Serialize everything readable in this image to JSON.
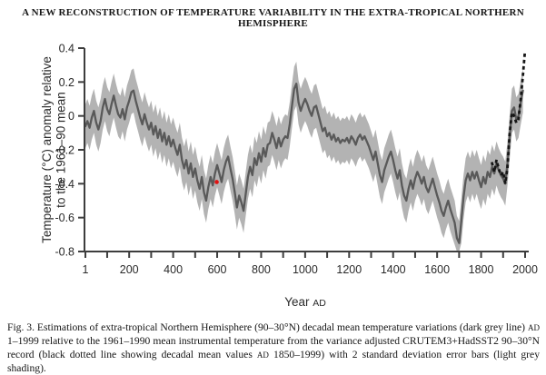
{
  "page": {
    "header": "A NEW RECONSTRUCTION OF TEMPERATURE VARIABILITY IN THE EXTRA-TROPICAL NORTHERN HEMISPHERE",
    "caption_segments": [
      {
        "text": "Fig. 3. Estimations of extra-tropical Northern Hemisphere (90–30°N) decadal mean temperature variations (dark grey line) ",
        "smallcaps": false
      },
      {
        "text": "AD",
        "smallcaps": true
      },
      {
        "text": " 1–1999 relative to the 1961–1990 mean instrumental temperature from the variance adjusted CRUTEM3+HadSST2 90–30°N record (black dotted line showing decadal mean values ",
        "smallcaps": false
      },
      {
        "text": "AD",
        "smallcaps": true
      },
      {
        "text": " 1850–1999) with 2 standard deviation error bars (light grey shading).",
        "smallcaps": false
      }
    ]
  },
  "chart_data": {
    "type": "line",
    "title": "",
    "xlabel": "Year AD",
    "xlabel_parts": [
      {
        "text": "Year ",
        "smallcaps": false
      },
      {
        "text": "AD",
        "smallcaps": true
      }
    ],
    "ylabel": "Temperature (°C) anomaly relative to the 1961–90 mean",
    "ylabel_lines": [
      "Temperature (°C) anomaly relative",
      "to the 1961–90 mean"
    ],
    "xlim": [
      1,
      2010
    ],
    "ylim": [
      -0.8,
      0.4
    ],
    "xticks_labeled": [
      1,
      200,
      400,
      600,
      800,
      1000,
      1200,
      1400,
      1600,
      1800,
      2000
    ],
    "xticks_minor": [
      100,
      300,
      500,
      700,
      900,
      1100,
      1300,
      1500,
      1700,
      1900
    ],
    "ytick_values": [
      0.4,
      0.2,
      0,
      -0.2,
      -0.4,
      -0.6,
      -0.8
    ],
    "ytick_labels": [
      "0.4",
      "0.2",
      "0",
      "-0.2",
      "-0.4",
      "-0.6",
      "-0.8"
    ],
    "grid": false,
    "legend": "none",
    "colors": {
      "reconstruction": "#595959",
      "uncertainty_band": "#b3b3b3",
      "instrumental": "#161616",
      "axis": "#3d3d3d",
      "marker": "#e01212"
    },
    "band_halfwidth": 0.13,
    "series": [
      {
        "name": "reconstruction",
        "label": "Extra-tropical NH decadal mean temperature, AD 1-1999 (dark grey line)",
        "style": "solid",
        "x": [
          1,
          10,
          20,
          30,
          40,
          50,
          60,
          70,
          80,
          90,
          100,
          110,
          120,
          130,
          140,
          150,
          160,
          170,
          180,
          190,
          200,
          210,
          220,
          230,
          240,
          250,
          260,
          270,
          280,
          290,
          300,
          310,
          320,
          330,
          340,
          350,
          360,
          370,
          380,
          390,
          400,
          410,
          420,
          430,
          440,
          450,
          460,
          470,
          480,
          490,
          500,
          510,
          520,
          530,
          540,
          550,
          560,
          570,
          580,
          590,
          600,
          610,
          620,
          630,
          640,
          650,
          660,
          670,
          680,
          690,
          700,
          710,
          720,
          730,
          740,
          750,
          760,
          770,
          780,
          790,
          800,
          810,
          820,
          830,
          840,
          850,
          860,
          870,
          880,
          890,
          900,
          910,
          920,
          930,
          940,
          950,
          960,
          970,
          980,
          990,
          1000,
          1010,
          1020,
          1030,
          1040,
          1050,
          1060,
          1070,
          1080,
          1090,
          1100,
          1110,
          1120,
          1130,
          1140,
          1150,
          1160,
          1170,
          1180,
          1190,
          1200,
          1210,
          1220,
          1230,
          1240,
          1250,
          1260,
          1270,
          1280,
          1290,
          1300,
          1310,
          1320,
          1330,
          1340,
          1350,
          1360,
          1370,
          1380,
          1390,
          1400,
          1410,
          1420,
          1430,
          1440,
          1450,
          1460,
          1470,
          1480,
          1490,
          1500,
          1510,
          1520,
          1530,
          1540,
          1550,
          1560,
          1570,
          1580,
          1590,
          1600,
          1610,
          1620,
          1630,
          1640,
          1650,
          1660,
          1670,
          1680,
          1690,
          1700,
          1710,
          1720,
          1730,
          1740,
          1750,
          1760,
          1770,
          1780,
          1790,
          1800,
          1810,
          1820,
          1830,
          1840,
          1850,
          1860,
          1870,
          1880,
          1890,
          1900,
          1910,
          1920,
          1930,
          1940,
          1950,
          1960,
          1970,
          1980,
          1990
        ],
        "y": [
          -0.06,
          -0.03,
          -0.07,
          -0.01,
          0.03,
          -0.04,
          -0.08,
          -0.03,
          0.05,
          0.1,
          0.04,
          0.01,
          0.07,
          0.12,
          0.06,
          0.01,
          -0.01,
          0.04,
          -0.02,
          0.05,
          0.09,
          0.14,
          0.15,
          0.09,
          0.04,
          -0.01,
          -0.05,
          0.01,
          -0.04,
          -0.08,
          -0.04,
          -0.11,
          -0.06,
          -0.13,
          -0.08,
          -0.15,
          -0.1,
          -0.17,
          -0.12,
          -0.18,
          -0.14,
          -0.19,
          -0.23,
          -0.17,
          -0.26,
          -0.31,
          -0.26,
          -0.34,
          -0.28,
          -0.36,
          -0.31,
          -0.38,
          -0.43,
          -0.36,
          -0.45,
          -0.5,
          -0.42,
          -0.36,
          -0.41,
          -0.34,
          -0.29,
          -0.34,
          -0.39,
          -0.32,
          -0.27,
          -0.24,
          -0.31,
          -0.37,
          -0.45,
          -0.54,
          -0.47,
          -0.51,
          -0.56,
          -0.46,
          -0.36,
          -0.3,
          -0.35,
          -0.25,
          -0.29,
          -0.22,
          -0.27,
          -0.19,
          -0.24,
          -0.17,
          -0.16,
          -0.1,
          -0.14,
          -0.19,
          -0.13,
          -0.18,
          -0.14,
          -0.12,
          -0.13,
          -0.05,
          0.06,
          0.16,
          0.19,
          0.08,
          0.03,
          0.07,
          0.1,
          0.07,
          0.03,
          0.0,
          0.05,
          0.06,
          0.01,
          -0.04,
          -0.09,
          -0.07,
          -0.12,
          -0.1,
          -0.14,
          -0.11,
          -0.15,
          -0.13,
          -0.16,
          -0.14,
          -0.15,
          -0.13,
          -0.16,
          -0.12,
          -0.14,
          -0.17,
          -0.13,
          -0.11,
          -0.14,
          -0.12,
          -0.15,
          -0.18,
          -0.22,
          -0.26,
          -0.21,
          -0.28,
          -0.35,
          -0.39,
          -0.32,
          -0.28,
          -0.24,
          -0.21,
          -0.26,
          -0.32,
          -0.37,
          -0.32,
          -0.41,
          -0.47,
          -0.5,
          -0.43,
          -0.38,
          -0.43,
          -0.37,
          -0.33,
          -0.36,
          -0.4,
          -0.36,
          -0.42,
          -0.45,
          -0.41,
          -0.37,
          -0.42,
          -0.47,
          -0.51,
          -0.56,
          -0.59,
          -0.54,
          -0.5,
          -0.55,
          -0.59,
          -0.63,
          -0.72,
          -0.75,
          -0.62,
          -0.48,
          -0.38,
          -0.34,
          -0.38,
          -0.33,
          -0.37,
          -0.33,
          -0.38,
          -0.42,
          -0.36,
          -0.4,
          -0.33,
          -0.36,
          -0.3,
          -0.34,
          -0.28,
          -0.32,
          -0.35,
          -0.37,
          -0.4,
          -0.28,
          -0.12,
          0.03,
          0.05,
          -0.02,
          0.0,
          0.08,
          0.15
        ]
      },
      {
        "name": "instrumental",
        "label": "CRUTEM3+HadSST2 90-30N decadal mean values AD 1850-1999 (black dotted line)",
        "style": "dotted",
        "x": [
          1850,
          1860,
          1870,
          1880,
          1890,
          1900,
          1910,
          1920,
          1930,
          1940,
          1950,
          1960,
          1970,
          1980,
          1990,
          1999
        ],
        "y": [
          -0.28,
          -0.33,
          -0.26,
          -0.31,
          -0.35,
          -0.33,
          -0.4,
          -0.3,
          -0.1,
          0.02,
          0.0,
          -0.04,
          -0.02,
          0.1,
          0.24,
          0.38
        ]
      }
    ],
    "marker": {
      "x": 598,
      "y": -0.39,
      "note": "small red dot on plot near AD 600"
    }
  }
}
